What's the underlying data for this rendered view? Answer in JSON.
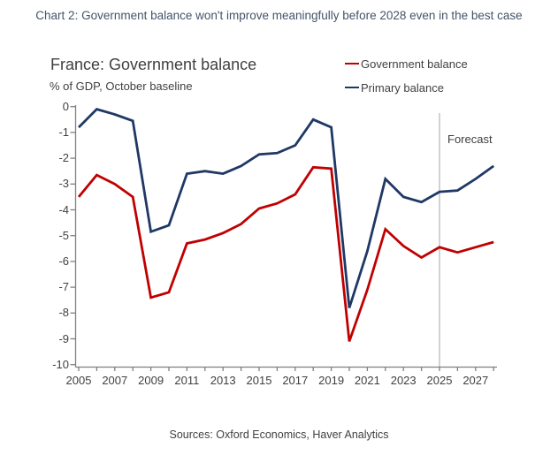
{
  "page": {
    "header_title": "Chart 2: Government balance won't improve meaningfully before 2028 even in the best case",
    "sources": "Sources: Oxford Economics, Haver Analytics"
  },
  "chart": {
    "title": "France: Government balance",
    "subtitle": "% of GDP, October baseline",
    "forecast_label": "Forecast"
  },
  "colors": {
    "header_text": "#44546a",
    "body_text": "#404040",
    "government_balance": "#c00000",
    "primary_balance": "#1f3864",
    "axis": "#808080",
    "forecast_line": "#a6a6a6"
  },
  "chart_data": {
    "type": "line",
    "title": "France: Government balance",
    "subtitle": "% of GDP, October baseline",
    "ylabel": "% of GDP",
    "x": [
      2005,
      2006,
      2007,
      2008,
      2009,
      2010,
      2011,
      2012,
      2013,
      2014,
      2015,
      2016,
      2017,
      2018,
      2019,
      2020,
      2021,
      2022,
      2023,
      2024,
      2025,
      2026,
      2027,
      2028
    ],
    "series": [
      {
        "name": "Government balance",
        "color": "#c00000",
        "values": [
          -3.5,
          -2.65,
          -3.0,
          -3.5,
          -7.4,
          -7.2,
          -5.3,
          -5.15,
          -4.9,
          -4.55,
          -3.95,
          -3.75,
          -3.4,
          -2.35,
          -2.4,
          -9.1,
          -7.1,
          -4.75,
          -5.4,
          -5.85,
          -5.45,
          -5.65,
          -5.45,
          -5.25
        ]
      },
      {
        "name": "Primary balance",
        "color": "#1f3864",
        "values": [
          -0.8,
          -0.1,
          -0.3,
          -0.55,
          -4.85,
          -4.6,
          -2.6,
          -2.5,
          -2.6,
          -2.3,
          -1.85,
          -1.8,
          -1.5,
          -0.5,
          -0.8,
          -7.8,
          -5.6,
          -2.8,
          -3.5,
          -3.7,
          -3.3,
          -3.25,
          -2.8,
          -2.3
        ]
      }
    ],
    "xticks": [
      2005,
      2007,
      2009,
      2011,
      2013,
      2015,
      2017,
      2019,
      2021,
      2023,
      2025,
      2027
    ],
    "yticks": [
      0,
      -1,
      -2,
      -3,
      -4,
      -5,
      -6,
      -7,
      -8,
      -9,
      -10
    ],
    "ylim": [
      -10,
      0
    ],
    "xlim": [
      2005,
      2028.4
    ],
    "forecast_line_year": 2025,
    "forecast_label": "Forecast",
    "grid": false,
    "legend_position": "top-right"
  }
}
